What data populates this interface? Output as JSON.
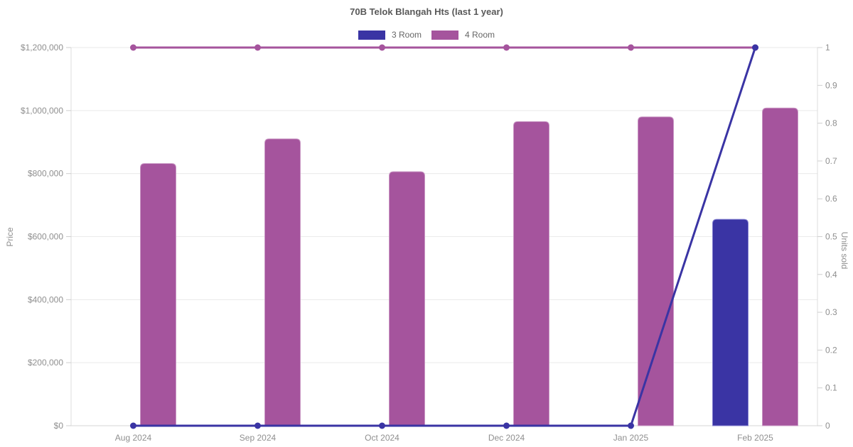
{
  "chart_data": {
    "type": "bar",
    "title": "70B Telok Blangah Hts (last 1 year)",
    "categories": [
      "Aug 2024",
      "Sep 2024",
      "Oct 2024",
      "Dec 2024",
      "Jan 2025",
      "Feb 2025"
    ],
    "legend": [
      {
        "label": "3 Room",
        "color": "#3a34a4"
      },
      {
        "label": "4 Room",
        "color": "#a5549d"
      }
    ],
    "bar_series": [
      {
        "name": "3 Room",
        "axis": "left",
        "color": "#3a34a4",
        "border_color": "#817dcf",
        "values": [
          null,
          null,
          null,
          null,
          null,
          655000
        ]
      },
      {
        "name": "4 Room",
        "axis": "left",
        "color": "#a5549d",
        "border_color": "#c997c4",
        "values": [
          832000,
          910000,
          806000,
          965000,
          980000,
          1008000
        ]
      }
    ],
    "line_series": [
      {
        "name": "4 Room",
        "axis": "right",
        "color": "#a5549d",
        "values": [
          1,
          1,
          1,
          1,
          1,
          1
        ]
      },
      {
        "name": "3 Room",
        "axis": "right",
        "color": "#3a34a4",
        "values": [
          0,
          0,
          0,
          0,
          0,
          1
        ]
      }
    ],
    "left_axis": {
      "label": "Price",
      "min": 0,
      "max": 1200000,
      "ticks": [
        {
          "v": 0,
          "label": "$0"
        },
        {
          "v": 200000,
          "label": "$200,000"
        },
        {
          "v": 400000,
          "label": "$400,000"
        },
        {
          "v": 600000,
          "label": "$600,000"
        },
        {
          "v": 800000,
          "label": "$800,000"
        },
        {
          "v": 1000000,
          "label": "$1,000,000"
        },
        {
          "v": 1200000,
          "label": "$1,200,000"
        }
      ]
    },
    "right_axis": {
      "label": "Units sold",
      "min": 0,
      "max": 1,
      "ticks": [
        {
          "v": 0,
          "label": "0"
        },
        {
          "v": 0.1,
          "label": "0.1"
        },
        {
          "v": 0.2,
          "label": "0.2"
        },
        {
          "v": 0.3,
          "label": "0.3"
        },
        {
          "v": 0.4,
          "label": "0.4"
        },
        {
          "v": 0.5,
          "label": "0.5"
        },
        {
          "v": 0.6,
          "label": "0.6"
        },
        {
          "v": 0.7,
          "label": "0.7"
        },
        {
          "v": 0.8,
          "label": "0.8"
        },
        {
          "v": 0.9,
          "label": "0.9"
        },
        {
          "v": 1,
          "label": "1"
        }
      ]
    }
  }
}
